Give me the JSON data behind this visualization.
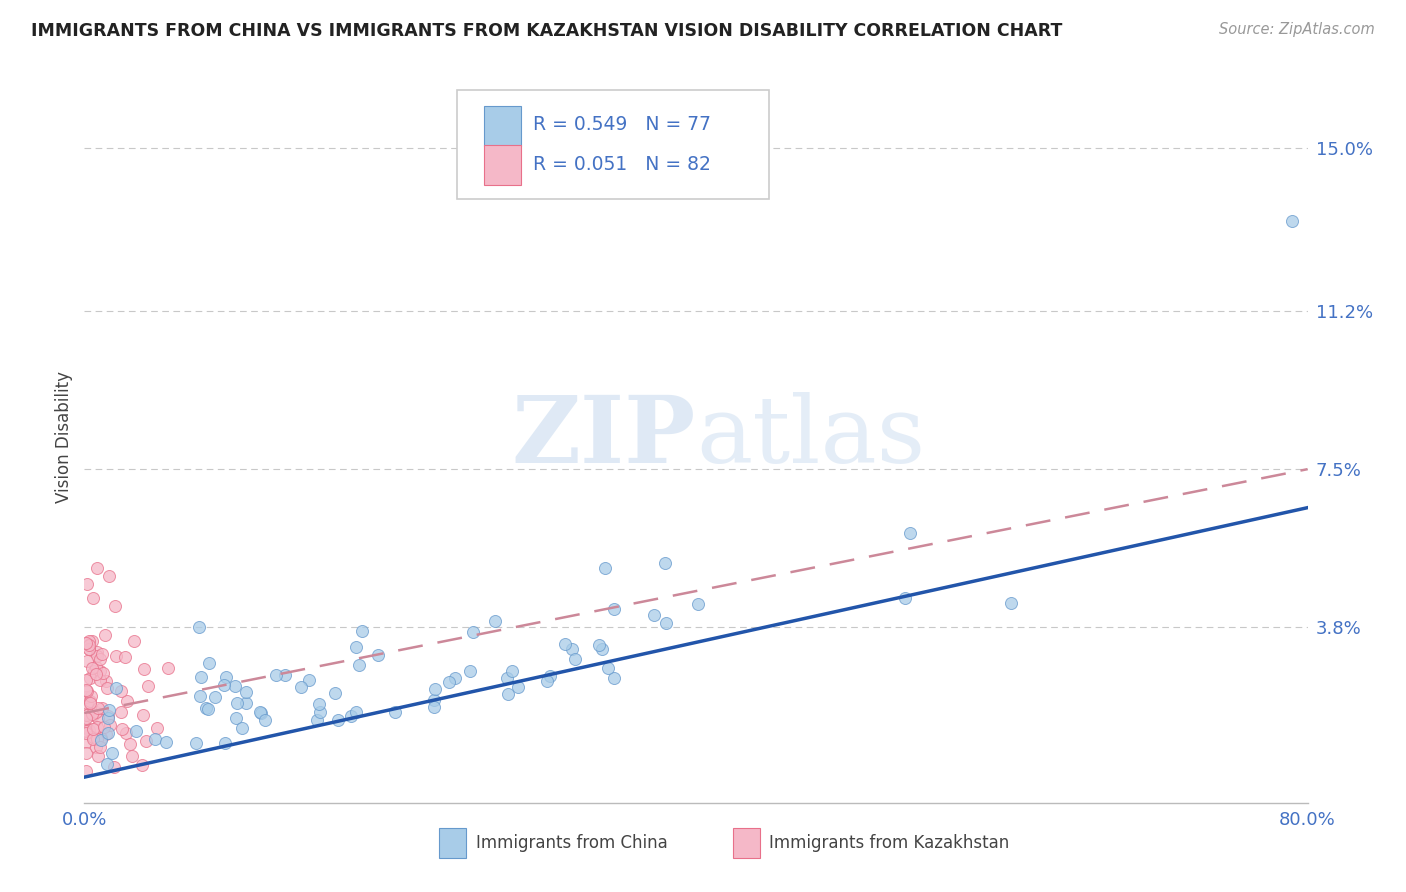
{
  "title": "IMMIGRANTS FROM CHINA VS IMMIGRANTS FROM KAZAKHSTAN VISION DISABILITY CORRELATION CHART",
  "source": "Source: ZipAtlas.com",
  "ylabel": "Vision Disability",
  "xlim": [
    0.0,
    0.8
  ],
  "ylim": [
    -0.003,
    0.168
  ],
  "ytick_vals": [
    0.038,
    0.075,
    0.112,
    0.15
  ],
  "ytick_labels": [
    "3.8%",
    "7.5%",
    "11.2%",
    "15.0%"
  ],
  "xtick_vals": [
    0.0,
    0.8
  ],
  "xtick_labels": [
    "0.0%",
    "80.0%"
  ],
  "china_color": "#a8cce8",
  "china_edge_color": "#6699cc",
  "kaz_color": "#f5b8c8",
  "kaz_edge_color": "#e8708a",
  "china_R": 0.549,
  "china_N": 77,
  "kaz_R": 0.051,
  "kaz_N": 82,
  "china_trend_color": "#2255aa",
  "kaz_trend_color": "#cc8899",
  "watermark": "ZIPatlas",
  "background_color": "#ffffff",
  "grid_color": "#c8c8c8",
  "title_color": "#222222",
  "tick_label_color": "#4472c4",
  "legend_text_color": "#4472c4"
}
